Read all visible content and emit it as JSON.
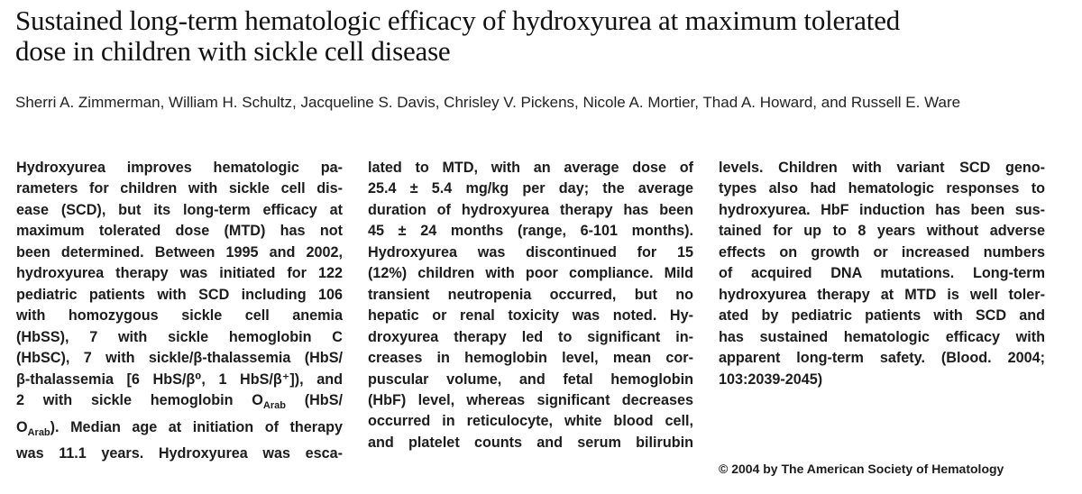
{
  "title": {
    "lines": [
      "Sustained long-term hematologic efficacy of hydroxyurea at maximum tolerated",
      "dose in children with sickle cell disease"
    ]
  },
  "authors": "Sherri A. Zimmerman, William H. Schultz, Jacqueline S. Davis, Chrisley V. Pickens, Nicole A. Mortier, Thad A. Howard, and Russell E. Ware",
  "abstract": {
    "col1": [
      "Hydroxyurea improves hematologic pa-",
      "rameters for children with sickle cell dis-",
      "ease (SCD), but its long-term efficacy at",
      "maximum tolerated dose (MTD) has not",
      "been determined. Between 1995 and 2002,",
      "hydroxyurea therapy was initiated for 122",
      "pediatric patients with SCD including 106",
      "with homozygous sickle cell anemia",
      "(HbSS), 7 with sickle hemoglobin C",
      "(HbSC), 7 with sickle/β-thalassemia (HbS/",
      "β-thalassemia [6 HbS/β⁰, 1 HbS/β⁺]), and",
      "2 with sickle hemoglobin O",
      "was 11.1 years. Hydroxyurea was esca-"
    ],
    "col1_line12_sub1": "Arab",
    "col1_line12_tail": " (HbS/",
    "col1_line13_pre": "O",
    "col1_line13_sub": "Arab",
    "col1_line13_post": "). Median age at initiation of therapy",
    "col2": [
      "lated to MTD, with an average dose of",
      "25.4 ± 5.4 mg/kg per day; the average",
      "duration of hydroxyurea therapy has been",
      "45 ± 24 months (range, 6-101 months).",
      "Hydroxyurea was discontinued for 15",
      "(12%) children with poor compliance. Mild",
      "transient neutropenia occurred, but no",
      "hepatic or renal toxicity was noted. Hy-",
      "droxyurea therapy led to significant in-",
      "creases in hemoglobin level, mean cor-",
      "puscular volume, and fetal hemoglobin",
      "(HbF) level, whereas significant decreases",
      "occurred in reticulocyte, white blood cell,",
      "and platelet counts and serum bilirubin"
    ],
    "col3": [
      "levels. Children with variant SCD geno-",
      "types also had hematologic responses to",
      "hydroxyurea. HbF induction has been sus-",
      "tained for up to 8 years without adverse",
      "effects on growth or increased numbers",
      "of acquired DNA mutations. Long-term",
      "hydroxyurea therapy at MTD is well toler-",
      "ated by pediatric patients with SCD and",
      "has sustained hematologic efficacy with",
      "apparent long-term safety. (Blood. 2004;",
      "103:2039-2045)"
    ]
  },
  "copyright": "© 2004 by The American Society of Hematology"
}
